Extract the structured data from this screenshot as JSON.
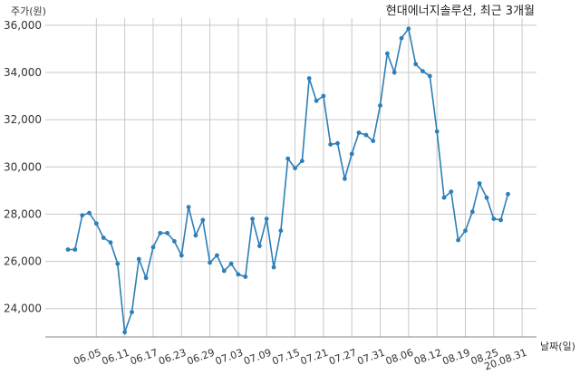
{
  "chart_data": {
    "type": "line",
    "title": "현대에너지솔루션, 최근 3개월",
    "ylabel": "주가(원)",
    "xlabel": "날짜(일)",
    "ylim": [
      22800,
      36300
    ],
    "yticks": [
      24000,
      26000,
      28000,
      30000,
      32000,
      34000,
      36000
    ],
    "ytick_labels": [
      "24,000",
      "26,000",
      "28,000",
      "30,000",
      "32,000",
      "34,000",
      "36,000"
    ],
    "grid": true,
    "color": "#2c7fb8",
    "x": [
      "06.01",
      "06.02",
      "06.03",
      "06.04",
      "06.05",
      "06.08",
      "06.09",
      "06.10",
      "06.11",
      "06.12",
      "06.15",
      "06.16",
      "06.17",
      "06.18",
      "06.19",
      "06.22",
      "06.23",
      "06.24",
      "06.25",
      "06.26",
      "06.29",
      "06.30",
      "07.01",
      "07.02",
      "07.03",
      "07.06",
      "07.07",
      "07.08",
      "07.09",
      "07.10",
      "07.13",
      "07.14",
      "07.15",
      "07.16",
      "07.17",
      "07.20",
      "07.21",
      "07.22",
      "07.23",
      "07.24",
      "07.27",
      "07.28",
      "07.29",
      "07.30",
      "07.31",
      "08.03",
      "08.04",
      "08.05",
      "08.06",
      "08.07",
      "08.10",
      "08.11",
      "08.12",
      "08.13",
      "08.14",
      "08.18",
      "08.19",
      "08.20",
      "08.21",
      "08.24",
      "08.25",
      "08.26",
      "08.27",
      "08.28",
      "08.31"
    ],
    "values": [
      26500,
      26500,
      27950,
      28050,
      27600,
      27000,
      26800,
      25900,
      23000,
      23850,
      26100,
      25300,
      26600,
      27200,
      27200,
      26850,
      26250,
      28300,
      27100,
      27750,
      25950,
      26250,
      25600,
      25900,
      25450,
      25350,
      27800,
      26650,
      27800,
      25750,
      27300,
      30350,
      29950,
      30250,
      33750,
      32800,
      33000,
      30950,
      31000,
      29500,
      30550,
      31450,
      31350,
      31100,
      32600,
      34800,
      34000,
      35450,
      35850,
      34350,
      34050,
      33850,
      31500,
      28700,
      28950,
      26900,
      27300,
      28100,
      29300,
      28700,
      27800,
      27750,
      28850,
      null,
      null
    ],
    "xtick_labels": [
      {
        "label": "06.05",
        "index": 4
      },
      {
        "label": "06.11",
        "index": 8
      },
      {
        "label": "06.17",
        "index": 12
      },
      {
        "label": "06.23",
        "index": 16
      },
      {
        "label": "06.29",
        "index": 20
      },
      {
        "label": "07.03",
        "index": 24
      },
      {
        "label": "07.09",
        "index": 28
      },
      {
        "label": "07.15",
        "index": 32
      },
      {
        "label": "07.21",
        "index": 36
      },
      {
        "label": "07.27",
        "index": 40
      },
      {
        "label": "07.31",
        "index": 44
      },
      {
        "label": "08.06",
        "index": 48
      },
      {
        "label": "08.12",
        "index": 52
      },
      {
        "label": "08.19",
        "index": 56
      },
      {
        "label": "08.25",
        "index": 60
      },
      {
        "label": "20.08.31",
        "index": 64
      }
    ]
  }
}
